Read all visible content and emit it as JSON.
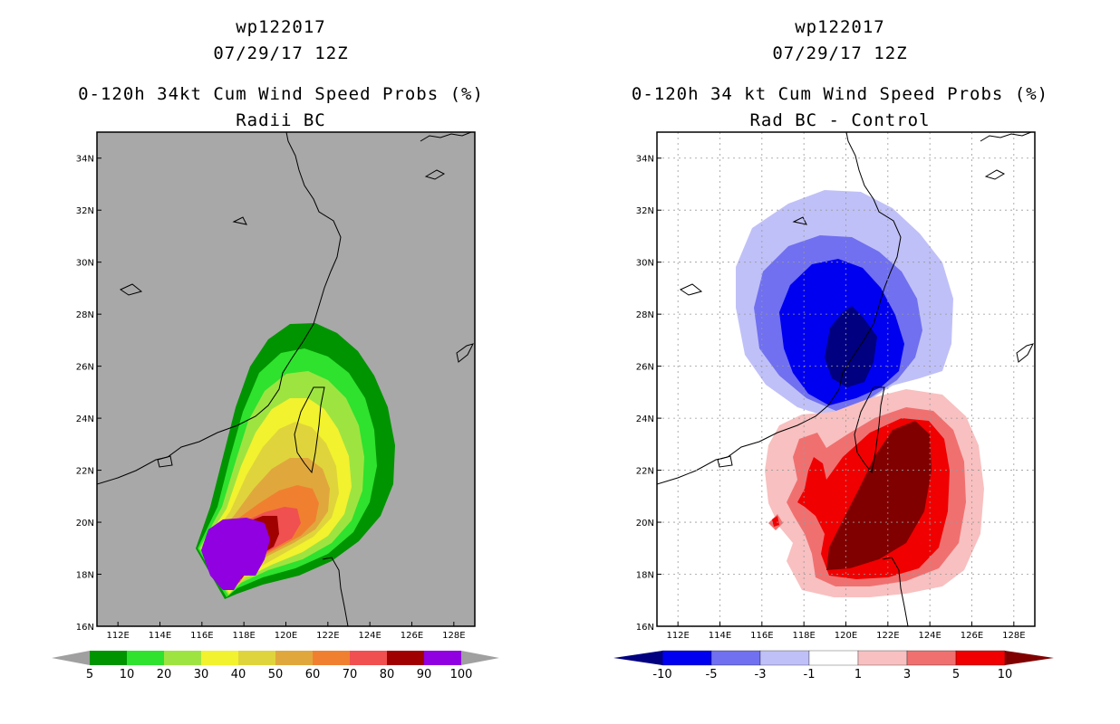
{
  "left_panel": {
    "title_line1": "wp122017",
    "title_line2": "07/29/17 12Z",
    "title_line3": "0-120h 34kt Cum Wind Speed Probs (%)",
    "title_line4": "Radii BC",
    "background_color": "#a8a8a8"
  },
  "right_panel": {
    "title_line1": "wp122017",
    "title_line2": "07/29/17 12Z",
    "title_line3": "0-120h 34 kt Cum Wind Speed Probs (%)",
    "title_line4": "Rad BC - Control",
    "background_color": "#ffffff"
  },
  "map_axes": {
    "lon_labels": [
      "112E",
      "114E",
      "116E",
      "118E",
      "120E",
      "122E",
      "124E",
      "126E",
      "128E"
    ],
    "lat_labels": [
      "34N",
      "32N",
      "30N",
      "28N",
      "26N",
      "24N",
      "22N",
      "20N",
      "18N",
      "16N"
    ],
    "lon_range": [
      111,
      129
    ],
    "lat_range": [
      16,
      35
    ]
  },
  "left_colorbar": {
    "labels": [
      "5",
      "10",
      "20",
      "30",
      "40",
      "50",
      "60",
      "70",
      "80",
      "90",
      "100"
    ],
    "colors": [
      "#009400",
      "#2ee22e",
      "#9ee440",
      "#f2f22e",
      "#e0d43c",
      "#e0a83c",
      "#f08030",
      "#f05050",
      "#a00000",
      "#9000e0"
    ],
    "end_color": "#a0a0a0"
  },
  "right_colorbar": {
    "labels": [
      "-10",
      "-5",
      "-3",
      "-1",
      "1",
      "3",
      "5",
      "10"
    ],
    "colors": [
      "#0000f0",
      "#7070f0",
      "#c0c0f8",
      "#ffffff",
      "#f8c0c0",
      "#f07070",
      "#f00000"
    ],
    "low_end_color": "#000080",
    "high_end_color": "#800000"
  }
}
